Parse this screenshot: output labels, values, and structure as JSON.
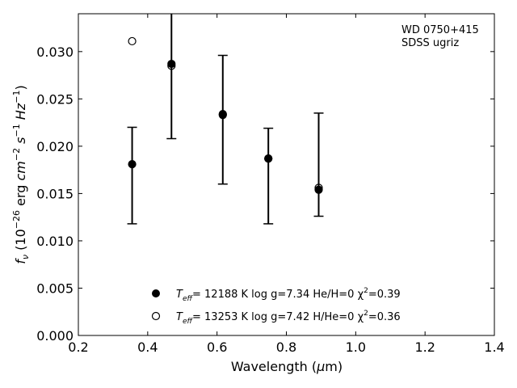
{
  "chart_data": {
    "type": "scatter",
    "xlim": [
      0.2,
      1.4
    ],
    "ylim": [
      0.0,
      0.034
    ],
    "xticks": [
      "0.2",
      "0.4",
      "0.6",
      "0.8",
      "1.0",
      "1.2",
      "1.4"
    ],
    "xtick_values": [
      0.2,
      0.4,
      0.6,
      0.8,
      1.0,
      1.2,
      1.4
    ],
    "yticks": [
      "0.000",
      "0.005",
      "0.010",
      "0.015",
      "0.020",
      "0.025",
      "0.030"
    ],
    "ytick_values": [
      0.0,
      0.005,
      0.01,
      0.015,
      0.02,
      0.025,
      0.03
    ],
    "annotation": [
      "WD 0750+415",
      "SDSS ugriz"
    ],
    "observed": {
      "x": [
        0.3551,
        0.4686,
        0.6166,
        0.748,
        0.8932
      ],
      "y": [
        0.0181,
        0.0286,
        0.0234,
        0.0188,
        0.0155
      ],
      "yerr_low": [
        0.0118,
        0.0208,
        0.016,
        0.0118,
        0.0126
      ],
      "yerr_high": [
        0.022,
        0.0342,
        0.0296,
        0.0219,
        0.0235
      ]
    },
    "series": [
      {
        "name_parts": {
          "t": "T",
          "sub": "eff",
          "rest": "= 12188 K  log g=7.34  He/H=0  χ",
          "sup": "2",
          "end": "=0.39"
        },
        "marker": "filled",
        "x": [
          0.3551,
          0.4686,
          0.6166,
          0.748,
          0.8932
        ],
        "y": [
          0.0181,
          0.0287,
          0.0234,
          0.0187,
          0.0154
        ]
      },
      {
        "name_parts": {
          "t": "T",
          "sub": "eff",
          "rest": "= 13253 K  log g=7.42  H/He=0  χ",
          "sup": "2",
          "end": "=0.36"
        },
        "marker": "open",
        "x": [
          0.3551,
          0.4686,
          0.6166,
          0.748,
          0.8932
        ],
        "y": [
          0.0311,
          0.0285,
          0.0233,
          0.0187,
          0.0156
        ]
      }
    ],
    "color": "#000000"
  },
  "axes": {
    "xlabel_parts": {
      "pre": "Wavelength (",
      "mu": "μ",
      "post": "m)"
    },
    "ylabel_parts": {
      "f": "f",
      "nu": "ν",
      "a": " (10",
      "exp1": "−26",
      "b": " erg ",
      "cm": "cm",
      "exp2": "−2",
      "s": " s",
      "exp3": "−1",
      "hz": " Hz",
      "exp4": "−1",
      "c": ")"
    }
  }
}
